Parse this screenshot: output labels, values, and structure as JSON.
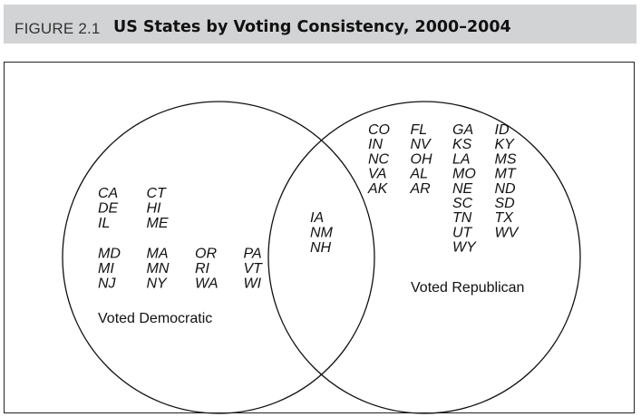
{
  "figure": {
    "label": "FIGURE 2.1",
    "title": "US States by Voting Consistency, 2000–2004"
  },
  "diagram": {
    "democratic": {
      "caption": "Voted Democratic",
      "columns": [
        [
          "CA",
          "DE",
          "IL",
          "",
          "MD",
          "MI",
          "NJ"
        ],
        [
          "CT",
          "HI",
          "ME",
          "",
          "MA",
          "MN",
          "NY"
        ],
        [
          "",
          "",
          "",
          "",
          "OR",
          "RI",
          "WA"
        ],
        [
          "",
          "",
          "",
          "",
          "PA",
          "VT",
          "WI"
        ]
      ]
    },
    "overlap": {
      "states": [
        "IA",
        "NM",
        "NH"
      ]
    },
    "republican": {
      "caption": "Voted Republican",
      "columns": [
        [
          "CO",
          "IN",
          "NC",
          "VA",
          "AK"
        ],
        [
          "FL",
          "NV",
          "OH",
          "AL",
          "AR"
        ],
        [
          "GA",
          "KS",
          "LA",
          "MO",
          "NE",
          "SC",
          "TN",
          "UT",
          "WY"
        ],
        [
          "ID",
          "KY",
          "MS",
          "MT",
          "ND",
          "SD",
          "TX",
          "WV"
        ]
      ]
    }
  }
}
